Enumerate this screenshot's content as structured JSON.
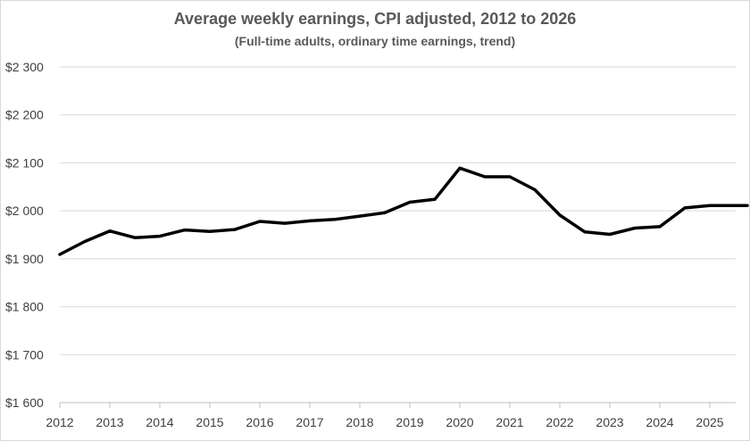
{
  "chart_data": {
    "type": "line",
    "title": "Average weekly earnings, CPI adjusted, 2012 to 2026",
    "subtitle": "(Full-time adults, ordinary time earnings, trend)",
    "xlabel": "",
    "ylabel": "",
    "ylim": [
      1600,
      2300
    ],
    "xlim": [
      2012,
      2025.75
    ],
    "y_ticks": [
      1600,
      1700,
      1800,
      1900,
      2000,
      2100,
      2200,
      2300
    ],
    "y_tick_labels": [
      "$1 600",
      "$1 700",
      "$1 800",
      "$1 900",
      "$2 000",
      "$2 100",
      "$2 200",
      "$2 300"
    ],
    "x_ticks": [
      2012,
      2013,
      2014,
      2015,
      2016,
      2017,
      2018,
      2019,
      2020,
      2021,
      2022,
      2023,
      2024,
      2025
    ],
    "x_tick_labels": [
      "2012",
      "2013",
      "2014",
      "2015",
      "2016",
      "2017",
      "2018",
      "2019",
      "2020",
      "2021",
      "2022",
      "2023",
      "2024",
      "2025"
    ],
    "grid": "horizontal",
    "line_color": "#000000",
    "series": [
      {
        "x": [
          2012.0,
          2012.5,
          2013.0,
          2013.5,
          2014.0,
          2014.5,
          2015.0,
          2015.5,
          2016.0,
          2016.5,
          2017.0,
          2017.5,
          2018.0,
          2018.5,
          2019.0,
          2019.5,
          2020.0,
          2020.5,
          2021.0,
          2021.5,
          2022.0,
          2022.5,
          2023.0,
          2023.5,
          2024.0,
          2024.5,
          2025.0,
          2025.5,
          2025.75
        ],
        "values": [
          1909,
          1936,
          1958,
          1944,
          1947,
          1960,
          1957,
          1961,
          1978,
          1974,
          1979,
          1982,
          1989,
          1996,
          2018,
          2024,
          2089,
          2071,
          2071,
          2044,
          1991,
          1956,
          1951,
          1964,
          1967,
          2006,
          2011,
          2011,
          2011
        ]
      }
    ]
  }
}
